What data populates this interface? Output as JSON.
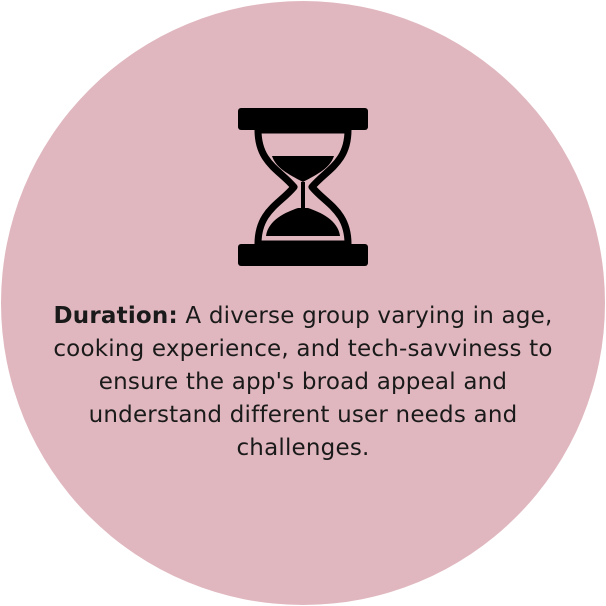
{
  "card": {
    "icon": "hourglass-icon",
    "label": "Duration:",
    "text": "A diverse group varying in age, cooking experience, and tech-savviness to ensure the app's broad appeal and understand different user needs and challenges."
  },
  "colors": {
    "circle_fill": "#e0b7bf",
    "icon": "#000000",
    "text": "#1a1a1a"
  }
}
